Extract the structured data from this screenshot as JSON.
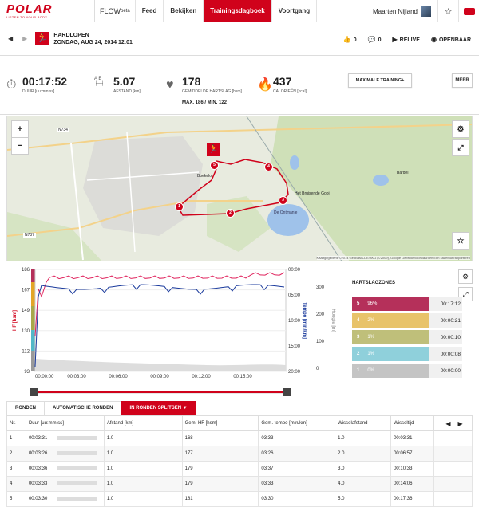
{
  "header": {
    "brand": "POLAR",
    "brand_tagline": "LISTEN TO YOUR BODY",
    "app": "FLOW",
    "app_badge": "beta",
    "nav": [
      {
        "label": "Feed",
        "active": false
      },
      {
        "label": "Bekijken",
        "active": false
      },
      {
        "label": "Trainingsdagboek",
        "active": true
      },
      {
        "label": "Voortgang",
        "active": false
      }
    ],
    "user_name": "Maarten Nijland"
  },
  "session": {
    "sport": "HARDLOPEN",
    "date": "ZONDAG, AUG 24, 2014 12:01",
    "likes": "0",
    "comments": "0",
    "relive_label": "RELIVE",
    "public_label": "OPENBAAR"
  },
  "stats": {
    "duration": {
      "value": "00:17:52",
      "label": "DUUR [uu:mm:ss]"
    },
    "distance": {
      "value": "5.07",
      "label": "AFSTAND [km]",
      "ab": "A  B"
    },
    "heart": {
      "value": "178",
      "label": "GEMIDDELDE HARTSLAG [hsm]",
      "maxmin": "MAX. 186  /  MIN. 122"
    },
    "calories": {
      "value": "437",
      "label": "CALORIEËN [kcal]"
    },
    "max_training_label": "MAXIMALE TRAINING+",
    "meer_label": "MEER"
  },
  "map": {
    "road_label": "N734",
    "road_label2": "N737",
    "place1": "Boekelo",
    "place2": "Het Bruisende Gooi",
    "place3": "De Ontmanie",
    "place4": "Bardel",
    "credit": "Kaartgegevens ©2014 GeoBasis-DE/BKG (©2009), Google   Gebruiksvoorwaarden   Een kaartfout rapporteren",
    "markers": [
      "1",
      "2",
      "3",
      "4",
      "5"
    ]
  },
  "chart_data": {
    "type": "line",
    "x_ticks": [
      "00:00:00",
      "00:03:00",
      "00:06:00",
      "00:09:00",
      "00:12:00",
      "00:15:00"
    ],
    "hr_ticks": [
      "186",
      "167",
      "149",
      "130",
      "112",
      "93"
    ],
    "hr_label": "HF [hsm]",
    "tempo_ticks": [
      "00:00",
      "05:00",
      "10:00",
      "15:00",
      "20:00"
    ],
    "tempo_label": "Tempo [min/km]",
    "alt_ticks": [
      "300",
      "200",
      "100",
      "0"
    ],
    "alt_label": "Hoogte [m]",
    "colors": {
      "hr": "#e0245e",
      "tempo": "#1a3a9c",
      "zone5": "#b5305a",
      "zone4": "#e3a527",
      "zone3": "#a8a84a",
      "zone2": "#52b8c8",
      "zone1": "#9a9a9a"
    }
  },
  "zones": {
    "title": "HARTSLAGZONES",
    "items": [
      {
        "zone": "5",
        "percent": "96%",
        "time": "00:17:12",
        "color": "#b5305a",
        "fill": 0.96
      },
      {
        "zone": "4",
        "percent": "2%",
        "time": "00:00:21",
        "color": "#e8c36a",
        "fill": 0.02
      },
      {
        "zone": "3",
        "percent": "1%",
        "time": "00:00:10",
        "color": "#bfbf7a",
        "fill": 0.01
      },
      {
        "zone": "2",
        "percent": "1%",
        "time": "00:00:08",
        "color": "#8fd0db",
        "fill": 0.01
      },
      {
        "zone": "1",
        "percent": "0%",
        "time": "00:00:00",
        "color": "#c4c4c4",
        "fill": 0.0
      }
    ]
  },
  "tabs": [
    {
      "label": "RONDEN",
      "active": false
    },
    {
      "label": "AUTOMATISCHE RONDEN",
      "active": false
    },
    {
      "label": "IN RONDEN SPLITSEN ▼",
      "active": true
    }
  ],
  "laps": {
    "headers": [
      "Nr.",
      "Duur [uu:mm:ss]",
      "Afstand [km]",
      "Gem. HF [hsm]",
      "Gem. tempo [min/km]",
      "Wisselafstand",
      "Wisseltijd"
    ],
    "rows": [
      [
        "1",
        "00:03:31",
        "1.0",
        "168",
        "03:33",
        "1.0",
        "00:03:31"
      ],
      [
        "2",
        "00:03:26",
        "1.0",
        "177",
        "03:26",
        "2.0",
        "00:06:57"
      ],
      [
        "3",
        "00:03:36",
        "1.0",
        "179",
        "03:37",
        "3.0",
        "00:10:33"
      ],
      [
        "4",
        "00:03:33",
        "1.0",
        "179",
        "03:33",
        "4.0",
        "00:14:06"
      ],
      [
        "5",
        "00:03:30",
        "1.0",
        "181",
        "03:30",
        "5.0",
        "00:17:36"
      ]
    ]
  }
}
